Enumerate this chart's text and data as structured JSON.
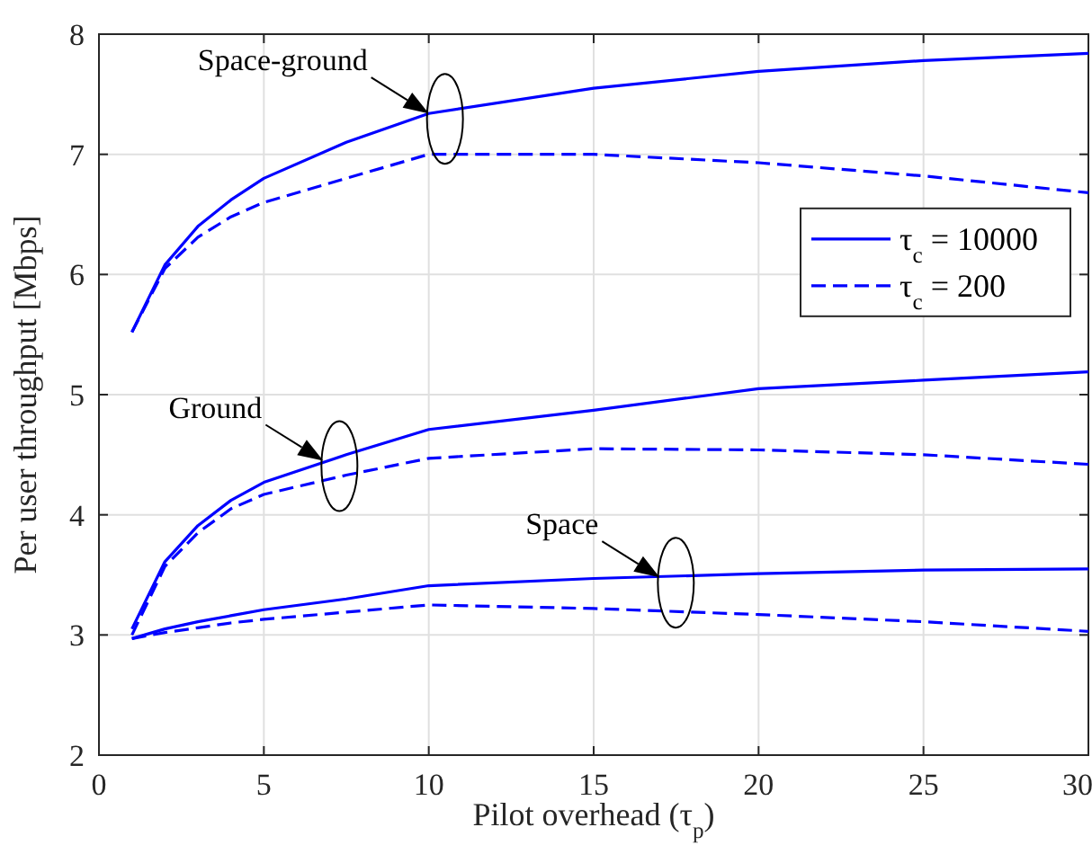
{
  "chart_data": {
    "type": "line",
    "xlabel": "Pilot overhead (τ$_{p}$)",
    "ylabel": "Per user throughput [Mbps]",
    "xlim": [
      0,
      30
    ],
    "ylim": [
      2,
      8
    ],
    "xticks": [
      0,
      5,
      10,
      15,
      20,
      25,
      30
    ],
    "yticks": [
      2,
      3,
      4,
      5,
      6,
      7,
      8
    ],
    "grid": true,
    "legend": "right",
    "x": [
      1,
      2,
      3,
      4,
      5,
      7.5,
      10,
      15,
      20,
      25,
      30
    ],
    "series": [
      {
        "name": "τ$_{c}$ = 10000",
        "color": "#0000ff",
        "line_style": "solid",
        "values": [
          5.52,
          6.08,
          6.4,
          6.62,
          6.8,
          7.1,
          7.34,
          7.55,
          7.69,
          7.78,
          7.84
        ]
      },
      {
        "name": "τ$_{c}$ = 200",
        "color": "#0000ff",
        "line_style": "dashed",
        "values": [
          5.52,
          6.05,
          6.31,
          6.48,
          6.6,
          6.8,
          7.0,
          7.0,
          6.93,
          6.82,
          6.68
        ]
      },
      {
        "color": "#0000ff",
        "line_style": "solid",
        "values": [
          3.05,
          3.61,
          3.91,
          4.12,
          4.27,
          4.5,
          4.71,
          4.87,
          5.05,
          5.12,
          5.19
        ]
      },
      {
        "color": "#0000ff",
        "line_style": "dashed",
        "values": [
          3.0,
          3.57,
          3.85,
          4.05,
          4.17,
          4.33,
          4.47,
          4.55,
          4.54,
          4.5,
          4.42
        ]
      },
      {
        "color": "#0000ff",
        "line_style": "solid",
        "values": [
          2.97,
          3.05,
          3.11,
          3.16,
          3.21,
          3.3,
          3.41,
          3.47,
          3.51,
          3.54,
          3.55
        ]
      },
      {
        "color": "#0000ff",
        "line_style": "dashed",
        "values": [
          2.97,
          3.02,
          3.06,
          3.1,
          3.13,
          3.19,
          3.25,
          3.22,
          3.17,
          3.11,
          3.03
        ]
      }
    ],
    "annotations": [
      {
        "text": "Space-ground",
        "x": 10,
        "y": 7.34
      },
      {
        "text": "Ground",
        "x": 6.8,
        "y": 4.45
      },
      {
        "text": "Space",
        "x": 17,
        "y": 3.48
      }
    ]
  }
}
